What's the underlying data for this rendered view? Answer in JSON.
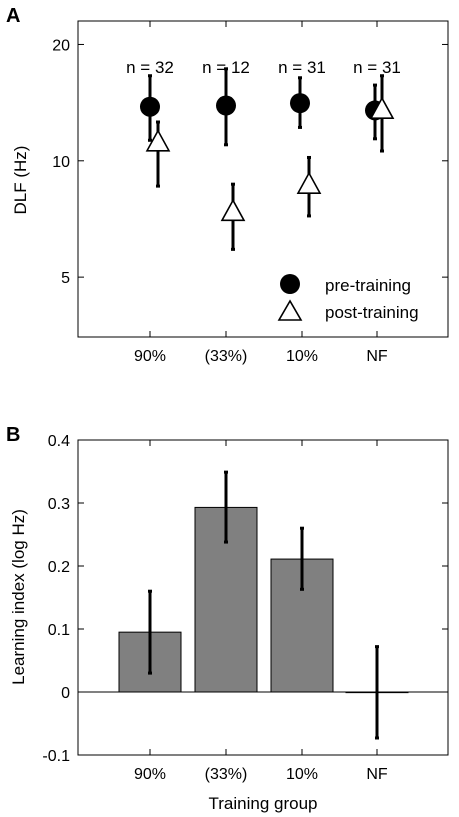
{
  "chart_data": [
    {
      "panel": "A",
      "type": "scatter",
      "categories": [
        "90%",
        "(33%)",
        "10%",
        "NF"
      ],
      "ylabel": "DLF (Hz)",
      "xlabel": "",
      "yscale": "log",
      "ylim": [
        3.5,
        23
      ],
      "yticks": [
        {
          "value": 5,
          "label": "5"
        },
        {
          "value": 10,
          "label": "10"
        },
        {
          "value": 20,
          "label": "20"
        }
      ],
      "n_labels": [
        "n = 32",
        "n = 12",
        "n = 31",
        "n = 31"
      ],
      "legend": {
        "position": "bottom-right"
      },
      "series": [
        {
          "name": "pre-training",
          "marker": "filled-circle",
          "color": "#000000",
          "values": [
            13.8,
            13.9,
            14.1,
            13.5
          ],
          "err_low": [
            11.3,
            11.0,
            12.2,
            11.4
          ],
          "err_high": [
            16.6,
            17.3,
            16.4,
            15.7
          ]
        },
        {
          "name": "post-training",
          "marker": "open-triangle",
          "color": "#000000",
          "values": [
            11.2,
            7.4,
            8.7,
            13.6
          ],
          "err_low": [
            8.6,
            5.9,
            7.2,
            10.6
          ],
          "err_high": [
            12.6,
            8.7,
            10.2,
            16.6
          ]
        }
      ]
    },
    {
      "panel": "B",
      "type": "bar",
      "categories": [
        "90%",
        "(33%)",
        "10%",
        "NF"
      ],
      "xlabel": "Training group",
      "ylabel": "Learning index (log Hz)",
      "ylim": [
        -0.1,
        0.4
      ],
      "yticks": [
        {
          "value": -0.1,
          "label": "-0.1"
        },
        {
          "value": 0,
          "label": "0"
        },
        {
          "value": 0.1,
          "label": "0.1"
        },
        {
          "value": 0.2,
          "label": "0.2"
        },
        {
          "value": 0.3,
          "label": "0.3"
        },
        {
          "value": 0.4,
          "label": "0.4"
        }
      ],
      "bar_color": "#808080",
      "values": [
        0.095,
        0.293,
        0.211,
        -0.001
      ],
      "err_low": [
        0.03,
        0.238,
        0.163,
        -0.073
      ],
      "err_high": [
        0.16,
        0.349,
        0.26,
        0.072
      ]
    }
  ]
}
